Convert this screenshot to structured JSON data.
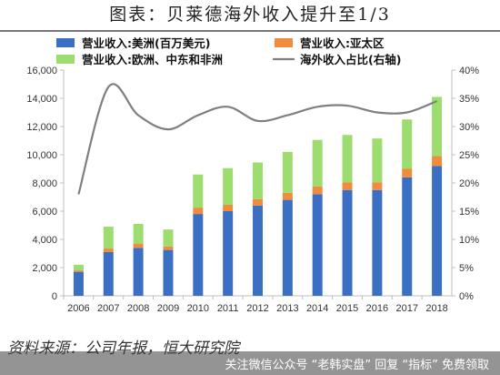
{
  "header": {
    "title": "图表：贝莱德海外收入提升至1/3"
  },
  "source_note": "资料来源：公司年报，恒大研究院",
  "footer_banner": "关注微信公众号 “老韩实盘” 回复 “指标” 免费领取",
  "colors": {
    "americas": "#3a6fc4",
    "asia_pacific": "#f08c3c",
    "europe_mea": "#9ddc6e",
    "overseas_line": "#7f7f7f"
  },
  "chart_data": {
    "type": "bar",
    "stacked": true,
    "categories": [
      "2006",
      "2007",
      "2008",
      "2009",
      "2010",
      "2011",
      "2012",
      "2013",
      "2014",
      "2015",
      "2016",
      "2017",
      "2018"
    ],
    "series": [
      {
        "name": "营业收入:美洲(百万美元)",
        "type": "bar",
        "axis": "left",
        "values": [
          1700,
          3100,
          3400,
          3250,
          5800,
          6000,
          6400,
          6800,
          7200,
          7500,
          7500,
          8400,
          9200
        ]
      },
      {
        "name": "营业收入:亚太区",
        "type": "bar",
        "axis": "left",
        "values": [
          100,
          250,
          300,
          250,
          450,
          450,
          450,
          500,
          550,
          550,
          550,
          600,
          700
        ]
      },
      {
        "name": "营业收入:欧洲、中东和非洲",
        "type": "bar",
        "axis": "left",
        "values": [
          400,
          1550,
          1400,
          1200,
          2350,
          2600,
          2600,
          2900,
          3300,
          3350,
          3100,
          3500,
          4200
        ]
      },
      {
        "name": "海外收入占比(右轴)",
        "type": "line",
        "axis": "right",
        "values": [
          18,
          37,
          32,
          29.5,
          32,
          33.5,
          31,
          32,
          33.5,
          33.7,
          32.5,
          32.5,
          34.5
        ]
      }
    ],
    "ylim_left": [
      0,
      16000
    ],
    "yticks_left": [
      "0",
      "2,000",
      "4,000",
      "6,000",
      "8,000",
      "10,000",
      "12,000",
      "14,000",
      "16,000"
    ],
    "ylim_right": [
      0,
      40
    ],
    "yticks_right": [
      "0%",
      "5%",
      "10%",
      "15%",
      "20%",
      "25%",
      "30%",
      "35%",
      "40%"
    ],
    "legend_position": "top",
    "grid": false
  }
}
